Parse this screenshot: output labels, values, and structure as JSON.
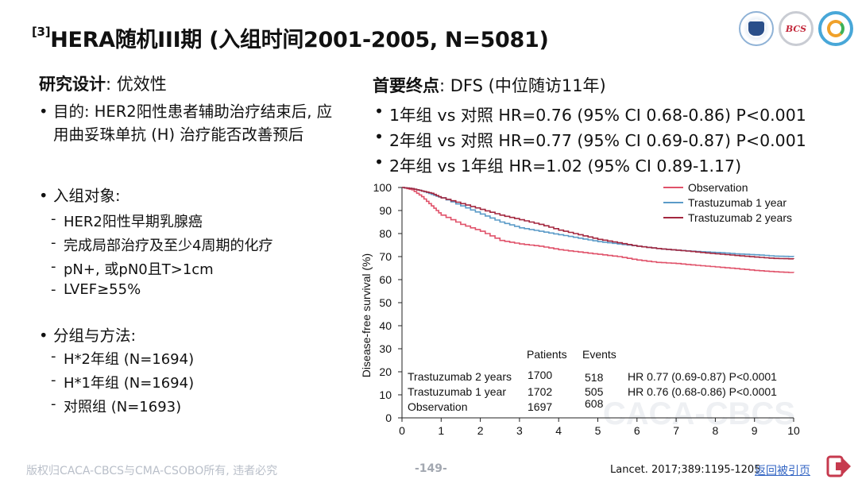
{
  "header": {
    "title_sup": "[3]",
    "title": "HERA随机III期 (入组时间2001-2005, N=5081)",
    "logos": [
      "hospital-emblem-logo",
      "bcs-logo",
      "csobo-logo"
    ],
    "logo2_text": "BCS"
  },
  "left": {
    "design_label": "研究设计",
    "design_value": ": 优效性",
    "purpose": "目的: HER2阳性患者辅助治疗结束后, 应用曲妥珠单抗 (H) 治疗能否改善预后",
    "subjects_label": "入组对象:",
    "subjects": [
      "HER2阳性早期乳腺癌",
      "完成局部治疗及至少4周期的化疗",
      "pN+, 或pN0且T>1cm",
      "LVEF≥55%"
    ],
    "groups_label": "分组与方法:",
    "groups": [
      "H*2年组 (N=1694)",
      "H*1年组 (N=1694)",
      "对照组 (N=1693)"
    ]
  },
  "right": {
    "endpoint_label": "首要终点",
    "endpoint_value": ": DFS (中位随访11年)",
    "results": [
      "1年组 vs 对照 HR=0.76 (95% CI 0.68-0.86) P<0.001",
      "2年组 vs 对照 HR=0.77 (95% CI 0.69-0.87) P<0.001",
      "2年组 vs 1年组 HR=1.02 (95% CI 0.89-1.17)"
    ]
  },
  "chart_data": {
    "type": "line",
    "ylabel": "Disease-free survival (%)",
    "xlabel": "",
    "xlim": [
      0,
      10
    ],
    "ylim": [
      0,
      100
    ],
    "x_ticks": [
      "0",
      "1",
      "2",
      "3",
      "4",
      "5",
      "6",
      "7",
      "8",
      "9",
      "10"
    ],
    "y_ticks": [
      "0",
      "10",
      "20",
      "30",
      "40",
      "50",
      "60",
      "70",
      "80",
      "90",
      "100"
    ],
    "legend_position": "top-right",
    "series": [
      {
        "name": "Observation",
        "color": "#e0526a",
        "x": [
          0,
          0.25,
          0.5,
          0.75,
          1,
          1.5,
          2,
          2.5,
          3,
          3.5,
          4,
          4.5,
          5,
          5.5,
          6,
          6.5,
          7,
          7.5,
          8,
          8.5,
          9,
          9.5,
          10
        ],
        "values": [
          100,
          99,
          96,
          92,
          88,
          84,
          81,
          77,
          75.5,
          74.5,
          73,
          72,
          71,
          70,
          68.5,
          67.5,
          67,
          66.2,
          65.5,
          64.8,
          64,
          63.4,
          63
        ]
      },
      {
        "name": "Trastuzumab 1 year",
        "color": "#5b9bc8",
        "x": [
          0,
          0.25,
          0.5,
          0.75,
          1,
          1.5,
          2,
          2.5,
          3,
          3.5,
          4,
          4.5,
          5,
          5.5,
          6,
          6.5,
          7,
          7.5,
          8,
          8.5,
          9,
          9.5,
          10
        ],
        "values": [
          100,
          99.5,
          98.5,
          97,
          95.5,
          92,
          88.5,
          85,
          82.5,
          81,
          79.5,
          78,
          76.5,
          75.5,
          74.5,
          73.5,
          72.8,
          72.2,
          71.8,
          71.2,
          70.8,
          70.2,
          70
        ]
      },
      {
        "name": "Trastuzumab 2 years",
        "color": "#a3273f",
        "x": [
          0,
          0.25,
          0.5,
          0.75,
          1,
          1.5,
          2,
          2.5,
          3,
          3.5,
          4,
          4.5,
          5,
          5.5,
          6,
          6.5,
          7,
          7.5,
          8,
          8.5,
          9,
          9.5,
          10
        ],
        "values": [
          100,
          99.5,
          98.5,
          97.5,
          95.5,
          93,
          90.5,
          88,
          86,
          84,
          81.5,
          79.5,
          77.5,
          76,
          74.5,
          73.5,
          72.8,
          72,
          71.2,
          70.5,
          69.8,
          69.2,
          69
        ]
      }
    ],
    "table": {
      "headers": [
        "Patients",
        "Events"
      ],
      "rows": [
        {
          "label": "Trastuzumab 2 years",
          "patients": "1700",
          "events": "518",
          "hr": "HR 0.77 (0.69-0.87) P<0.0001"
        },
        {
          "label": "Trastuzumab 1 year",
          "patients": "1702",
          "events": "505",
          "hr": "HR 0.76 (0.68-0.86) P<0.0001"
        },
        {
          "label": "Observation",
          "patients": "1697",
          "events": "608",
          "hr": ""
        }
      ]
    },
    "watermark": "CACA-CBCS"
  },
  "footer": {
    "copyright": "版权归CACA-CBCS与CMA-CSOBO所有, 违者必究",
    "page": "-149-",
    "citation": "Lancet. 2017;389:1195-1205",
    "back_link": "返回被引页"
  }
}
